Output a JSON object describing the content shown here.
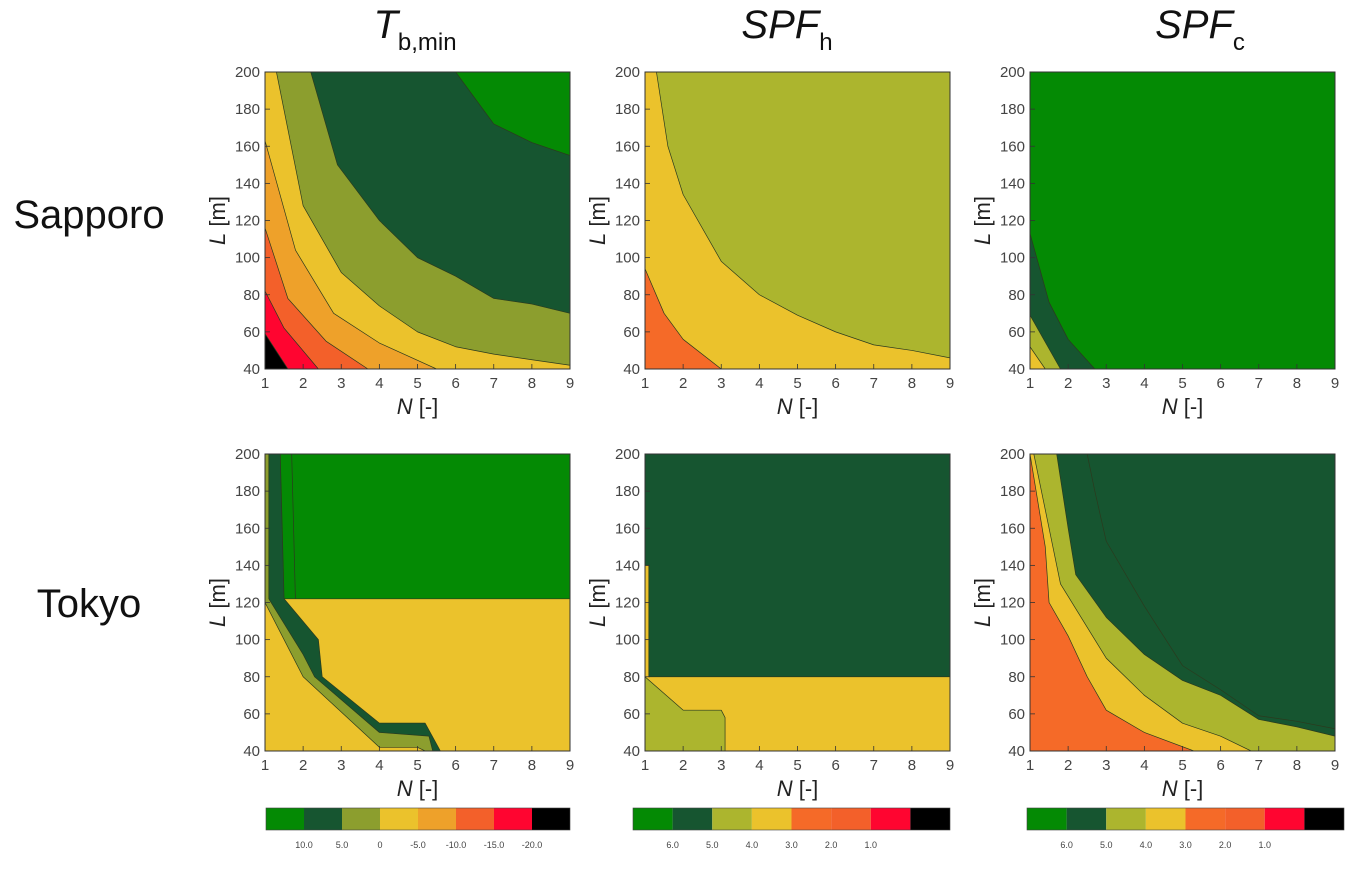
{
  "row_labels": [
    "Sapporo",
    "Tokyo"
  ],
  "column_titles": [
    {
      "main": "T",
      "sub": "b,min",
      "italic_main": true
    },
    {
      "main": "SPF",
      "sub": "h",
      "italic_main": true
    },
    {
      "main": "SPF",
      "sub": "c",
      "italic_main": true
    }
  ],
  "colors": {
    "green": "#048a04",
    "darkgreen": "#165530",
    "olive": "#8c9e2e",
    "lightolive": "#acb52e",
    "yellow": "#ebc22c",
    "orange": "#eea12a",
    "redorange": "#f3602a",
    "red": "#ff0530",
    "black": "#000000",
    "spf_orange": "#f56a28"
  },
  "chart_data": [
    {
      "type": "contour",
      "id": "sapporo-tbmin",
      "row": "Sapporo",
      "title": "T b,min",
      "xlabel": "N [-]",
      "ylabel": "L [m]",
      "xlim": [
        1,
        9
      ],
      "ylim": [
        40,
        200
      ],
      "xticks": [
        1,
        2,
        3,
        4,
        5,
        6,
        7,
        8,
        9
      ],
      "yticks": [
        40,
        60,
        80,
        100,
        120,
        140,
        160,
        180,
        200
      ],
      "levels": [
        {
          "color": "black",
          "boundary": [
            [
              1,
              59
            ],
            [
              1.6,
              40
            ]
          ]
        },
        {
          "color": "red",
          "boundary": [
            [
              1,
              82
            ],
            [
              1.5,
              62
            ],
            [
              2.4,
              40
            ]
          ]
        },
        {
          "color": "redorange",
          "boundary": [
            [
              1,
              116
            ],
            [
              1.6,
              78
            ],
            [
              2.6,
              55
            ],
            [
              3.7,
              40
            ]
          ]
        },
        {
          "color": "orange",
          "boundary": [
            [
              1,
              163
            ],
            [
              1.8,
              104
            ],
            [
              2.8,
              70
            ],
            [
              4,
              54
            ],
            [
              5.5,
              40
            ]
          ]
        },
        {
          "color": "yellow",
          "boundary": [
            [
              1.3,
              200
            ],
            [
              2,
              128
            ],
            [
              3,
              92
            ],
            [
              4,
              74
            ],
            [
              5,
              60
            ],
            [
              6,
              52
            ],
            [
              7,
              48
            ],
            [
              8,
              45
            ],
            [
              9,
              42
            ]
          ]
        },
        {
          "color": "olive",
          "boundary": [
            [
              2.2,
              200
            ],
            [
              2.9,
              150
            ],
            [
              4,
              120
            ],
            [
              5,
              100
            ],
            [
              6,
              90
            ],
            [
              7,
              78
            ],
            [
              8,
              75
            ],
            [
              9,
              70
            ]
          ]
        },
        {
          "color": "darkgreen",
          "boundary": [
            [
              6,
              200
            ],
            [
              7,
              172
            ],
            [
              8,
              162
            ],
            [
              9,
              155
            ]
          ]
        },
        {
          "color": "green",
          "boundary": []
        }
      ]
    },
    {
      "type": "contour",
      "id": "sapporo-spfh",
      "row": "Sapporo",
      "title": "SPF h",
      "xlabel": "N [-]",
      "ylabel": "L [m]",
      "xlim": [
        1,
        9
      ],
      "ylim": [
        40,
        200
      ],
      "xticks": [
        1,
        2,
        3,
        4,
        5,
        6,
        7,
        8,
        9
      ],
      "yticks": [
        40,
        60,
        80,
        100,
        120,
        140,
        160,
        180,
        200
      ],
      "levels": [
        {
          "color": "spf_orange",
          "boundary": [
            [
              1,
              94
            ],
            [
              1.5,
              70
            ],
            [
              2,
              56
            ],
            [
              3,
              40
            ]
          ]
        },
        {
          "color": "yellow",
          "boundary": [
            [
              1.3,
              200
            ],
            [
              1.6,
              160
            ],
            [
              2,
              134
            ],
            [
              3,
              98
            ],
            [
              4,
              80
            ],
            [
              5,
              69
            ],
            [
              6,
              60
            ],
            [
              7,
              53
            ],
            [
              8,
              50
            ],
            [
              9,
              46
            ]
          ]
        },
        {
          "color": "lightolive",
          "boundary": []
        }
      ]
    },
    {
      "type": "contour",
      "id": "sapporo-spfc",
      "row": "Sapporo",
      "title": "SPF c",
      "xlabel": "N [-]",
      "ylabel": "L [m]",
      "xlim": [
        1,
        9
      ],
      "ylim": [
        40,
        200
      ],
      "xticks": [
        1,
        2,
        3,
        4,
        5,
        6,
        7,
        8,
        9
      ],
      "yticks": [
        40,
        60,
        80,
        100,
        120,
        140,
        160,
        180,
        200
      ],
      "levels": [
        {
          "color": "yellow",
          "boundary": [
            [
              1,
              52
            ],
            [
              1.4,
              40
            ]
          ]
        },
        {
          "color": "lightolive",
          "boundary": [
            [
              1,
              69
            ],
            [
              1.8,
              40
            ]
          ]
        },
        {
          "color": "darkgreen",
          "boundary": [
            [
              1,
              113
            ],
            [
              1.5,
              76
            ],
            [
              2,
              56
            ],
            [
              2.7,
              40
            ]
          ]
        },
        {
          "color": "green",
          "boundary": []
        }
      ]
    },
    {
      "type": "contour",
      "id": "tokyo-tbmin",
      "row": "Tokyo",
      "title": "T b,min",
      "xlabel": "N [-]",
      "ylabel": "L [m]",
      "xlim": [
        1,
        9
      ],
      "ylim": [
        40,
        200
      ],
      "xticks": [
        1,
        2,
        3,
        4,
        5,
        6,
        7,
        8,
        9
      ],
      "yticks": [
        40,
        60,
        80,
        100,
        120,
        140,
        160,
        180,
        200
      ],
      "levels": [
        {
          "color": "yellow",
          "boundary": [
            [
              1,
              120
            ],
            [
              2,
              80
            ],
            [
              4,
              42
            ],
            [
              5,
              42
            ],
            [
              5.2,
              40
            ]
          ]
        },
        {
          "color": "olive",
          "boundary": [
            [
              1.1,
              200
            ],
            [
              1.1,
              122
            ],
            [
              2,
              92
            ],
            [
              2.3,
              80
            ],
            [
              4,
              50
            ],
            [
              5.3,
              48
            ],
            [
              5.4,
              40
            ]
          ]
        },
        {
          "color": "darkgreen",
          "boundary": [
            [
              1.4,
              200
            ],
            [
              1.5,
              122
            ],
            [
              2.4,
              100
            ],
            [
              2.5,
              80
            ],
            [
              4,
              55
            ],
            [
              5.2,
              55
            ],
            [
              5.6,
              40
            ]
          ]
        },
        {
          "color": "yellow",
          "boundary": [
            [
              1.1,
              200
            ],
            [
              1.1,
              122
            ]
          ]
        },
        {
          "color": "green",
          "boundary": [
            [
              1.7,
              200
            ],
            [
              1.8,
              120
            ],
            [
              2.7,
              100
            ],
            [
              2.8,
              80
            ],
            [
              4.4,
              53
            ],
            [
              5.3,
              52
            ],
            [
              5.8,
              40
            ]
          ]
        }
      ]
    },
    {
      "type": "contour",
      "id": "tokyo-spfh",
      "row": "Tokyo",
      "title": "SPF h",
      "xlabel": "N [-]",
      "ylabel": "L [m]",
      "xlim": [
        1,
        9
      ],
      "ylim": [
        40,
        200
      ],
      "xticks": [
        1,
        2,
        3,
        4,
        5,
        6,
        7,
        8,
        9
      ],
      "yticks": [
        40,
        60,
        80,
        100,
        120,
        140,
        160,
        180,
        200
      ],
      "levels": [
        {
          "color": "lightolive",
          "boundary": [
            [
              1,
              80
            ],
            [
              2,
              62
            ],
            [
              3,
              62
            ],
            [
              3.1,
              58
            ],
            [
              3.1,
              40
            ]
          ]
        },
        {
          "color": "yellow",
          "boundary": [
            [
              1,
              140
            ],
            [
              1.1,
              140
            ],
            [
              1.1,
              80
            ]
          ]
        },
        {
          "color": "darkgreen",
          "boundary": []
        }
      ]
    },
    {
      "type": "contour",
      "id": "tokyo-spfc",
      "row": "Tokyo",
      "title": "SPF c",
      "xlabel": "N [-]",
      "ylabel": "L [m]",
      "xlim": [
        1,
        9
      ],
      "ylim": [
        40,
        200
      ],
      "xticks": [
        1,
        2,
        3,
        4,
        5,
        6,
        7,
        8,
        9
      ],
      "yticks": [
        40,
        60,
        80,
        100,
        120,
        140,
        160,
        180,
        200
      ],
      "levels": [
        {
          "color": "spf_orange",
          "boundary": [
            [
              1,
              200
            ],
            [
              1.4,
              150
            ],
            [
              1.5,
              120
            ],
            [
              2,
              102
            ],
            [
              2.5,
              80
            ],
            [
              3,
              62
            ],
            [
              4,
              50
            ],
            [
              5.3,
              40
            ]
          ]
        },
        {
          "color": "yellow",
          "boundary": [
            [
              1.1,
              200
            ],
            [
              1.6,
              150
            ],
            [
              1.8,
              130
            ],
            [
              2.4,
              110
            ],
            [
              3,
              90
            ],
            [
              4,
              70
            ],
            [
              5,
              55
            ],
            [
              6,
              48
            ],
            [
              6.8,
              40
            ]
          ]
        },
        {
          "color": "lightolive",
          "boundary": [
            [
              1.7,
              200
            ],
            [
              2,
              160
            ],
            [
              2.2,
              135
            ],
            [
              3,
              112
            ],
            [
              4,
              92
            ],
            [
              5,
              78
            ],
            [
              6,
              70
            ],
            [
              7,
              57
            ],
            [
              8,
              53
            ],
            [
              9,
              48
            ]
          ]
        },
        {
          "color": "darkgreen",
          "boundary": [
            [
              2.5,
              200
            ],
            [
              2.7,
              180
            ],
            [
              3,
              153
            ],
            [
              4,
              118
            ],
            [
              5,
              86
            ],
            [
              6,
              73
            ],
            [
              7,
              59
            ],
            [
              8,
              56
            ],
            [
              9,
              52
            ]
          ]
        }
      ]
    }
  ],
  "colorbars": [
    {
      "id": "cb-tbmin",
      "colors": [
        "green",
        "darkgreen",
        "olive",
        "yellow",
        "orange",
        "redorange",
        "red",
        "black"
      ],
      "tick_labels": [
        "10.0",
        "5.0",
        "0",
        "-5.0",
        "-10.0",
        "-15.0",
        "-20.0"
      ]
    },
    {
      "id": "cb-spfh",
      "colors": [
        "green",
        "darkgreen",
        "lightolive",
        "yellow",
        "spf_orange",
        "redorange",
        "red",
        "black"
      ],
      "tick_labels": [
        "6.0",
        "5.0",
        "4.0",
        "3.0",
        "2.0",
        "1.0"
      ]
    },
    {
      "id": "cb-spfc",
      "colors": [
        "green",
        "darkgreen",
        "lightolive",
        "yellow",
        "spf_orange",
        "redorange",
        "red",
        "black"
      ],
      "tick_labels": [
        "6.0",
        "5.0",
        "4.0",
        "3.0",
        "2.0",
        "1.0"
      ]
    }
  ]
}
